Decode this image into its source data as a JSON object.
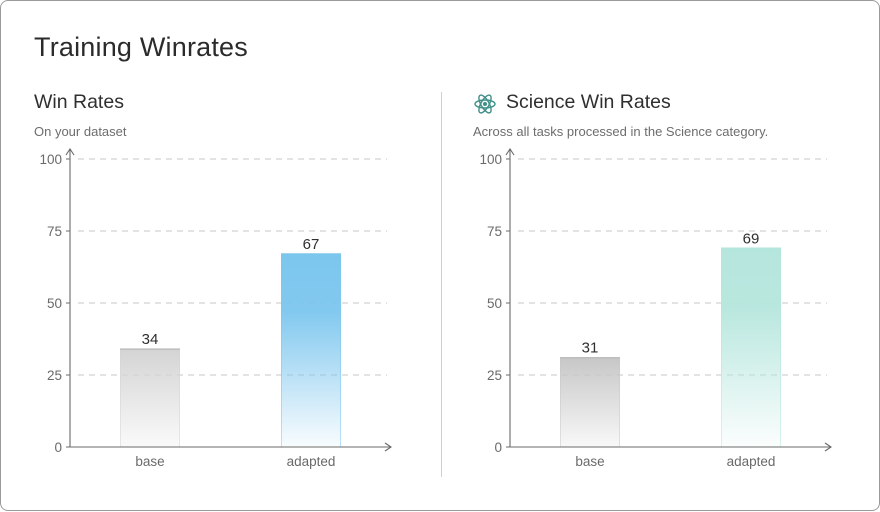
{
  "page": {
    "title": "Training Winrates"
  },
  "panels": [
    {
      "title": "Win Rates",
      "subtitle": "On your dataset",
      "icon": ""
    },
    {
      "title": "Science Win Rates",
      "subtitle": "Across all tasks processed in the Science category.",
      "icon": "atom-icon"
    }
  ],
  "chart_data": [
    {
      "type": "bar",
      "title": "Win Rates",
      "subtitle": "On your dataset",
      "categories": [
        "base",
        "adapted"
      ],
      "values": [
        34,
        67
      ],
      "ylim": [
        0,
        100
      ],
      "yticks": [
        0,
        25,
        50,
        75,
        100
      ],
      "grid": true,
      "colors": {
        "base": "#d4d4d4",
        "adapted": "#7cc6ee"
      }
    },
    {
      "type": "bar",
      "title": "Science Win Rates",
      "subtitle": "Across all tasks processed in the Science category.",
      "categories": [
        "base",
        "adapted"
      ],
      "values": [
        31,
        69
      ],
      "ylim": [
        0,
        100
      ],
      "yticks": [
        0,
        25,
        50,
        75,
        100
      ],
      "grid": true,
      "colors": {
        "base": "#c7c7c7",
        "adapted": "#b5e6dd"
      }
    }
  ]
}
